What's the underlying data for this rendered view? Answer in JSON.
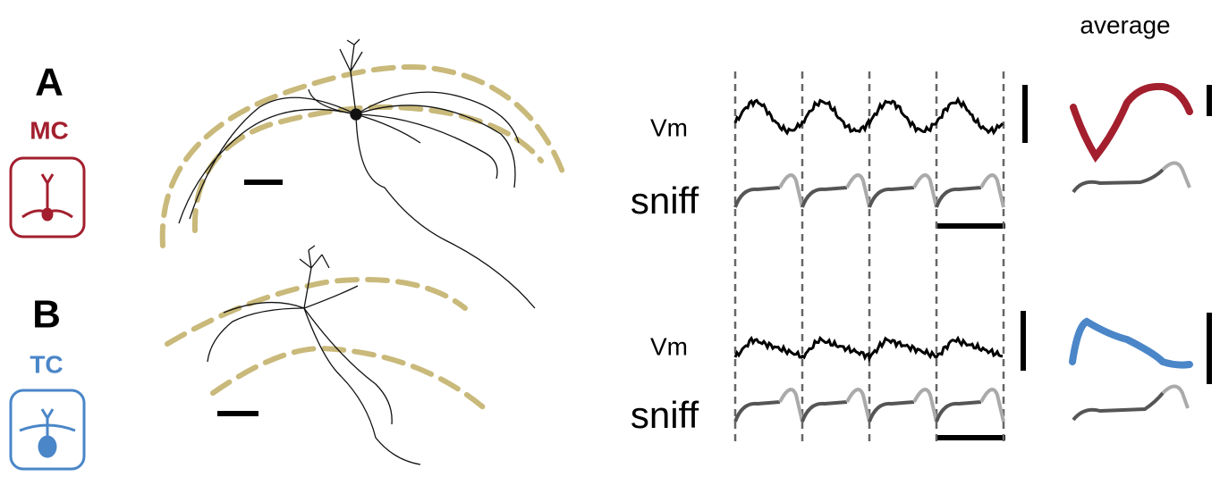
{
  "average_label": "average",
  "panels": [
    {
      "letter": "A",
      "cell": "MC",
      "trace_label": "Vm",
      "sniff_label": "sniff"
    },
    {
      "letter": "B",
      "cell": "TC",
      "trace_label": "Vm",
      "sniff_label": "sniff"
    }
  ]
}
